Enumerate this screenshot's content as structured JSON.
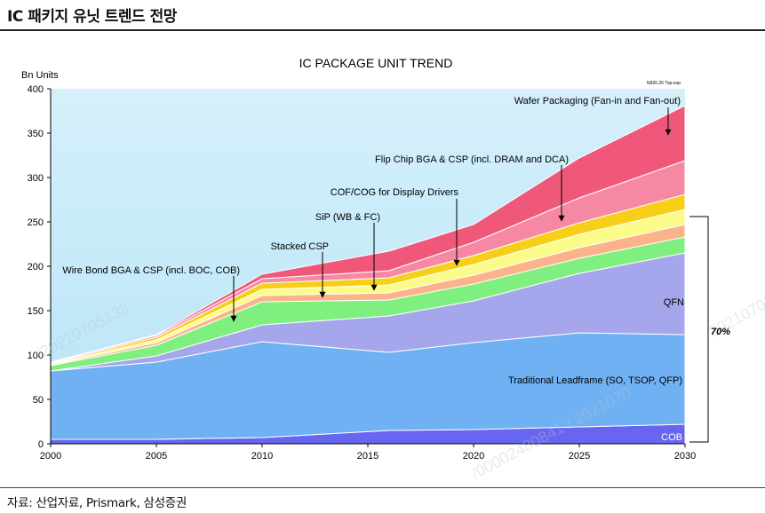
{
  "header": {
    "title": "IC 패키지 유닛 트렌드 전망"
  },
  "footer": {
    "source": "자료: 산업자료, Prismark, 삼성증권"
  },
  "watermarks": [
    "/20210705133",
    "20210705",
    "/00002480841 / 2021070"
  ],
  "chart_data": {
    "type": "area",
    "title": "IC PACKAGE UNIT TREND",
    "ylabel": "Bn Units",
    "note": "N920.26 Top-exp",
    "x": [
      2000,
      2005,
      2010,
      2016,
      2020,
      2025,
      2030
    ],
    "xticks": [
      2000,
      2005,
      2010,
      2015,
      2020,
      2025,
      2030
    ],
    "ylim": [
      0,
      400
    ],
    "yticks": [
      0,
      50,
      100,
      150,
      200,
      250,
      300,
      350,
      400
    ],
    "stacked": true,
    "series": [
      {
        "name": "COB",
        "color": "#6666f0",
        "values": [
          5,
          5,
          7,
          15,
          16,
          19,
          22
        ]
      },
      {
        "name": "Traditional Leadframe (SO, TSOP, QFP)",
        "color": "#6fb1f3",
        "values": [
          77,
          87,
          108,
          88,
          98,
          106,
          101
        ]
      },
      {
        "name": "QFN",
        "color": "#a6a6ec",
        "values": [
          0,
          7,
          19,
          41,
          47,
          67,
          92
        ]
      },
      {
        "name": "Wire Bond BGA & CSP (incl. BOC, COB)",
        "color": "#7fef7f",
        "values": [
          6,
          12,
          26,
          18,
          19,
          17,
          18
        ]
      },
      {
        "name": "Stacked CSP",
        "color": "#fbb38a",
        "values": [
          1,
          3,
          7,
          8,
          10,
          12,
          14
        ]
      },
      {
        "name": "SiP (WB & FC)",
        "color": "#fbfb8a",
        "values": [
          1,
          3,
          7,
          9,
          12,
          15,
          17
        ]
      },
      {
        "name": "COF/COG for Display Drivers",
        "color": "#f7cf19",
        "values": [
          1,
          3,
          7,
          8,
          10,
          13,
          17
        ]
      },
      {
        "name": "Flip Chip BGA & CSP (incl. DRAM and DCA)",
        "color": "#f788a4",
        "values": [
          1,
          2,
          5,
          8,
          15,
          28,
          38
        ]
      },
      {
        "name": "Wafer Packaging (Fan-in and Fan-out)",
        "color": "#f0587a",
        "values": [
          0,
          1,
          5,
          22,
          20,
          45,
          62
        ]
      }
    ],
    "annotations": [
      "Wafer Packaging (Fan-in and Fan-out)",
      "Flip Chip BGA & CSP (incl. DRAM and DCA)",
      "COF/COG for Display Drivers",
      "SiP (WB & FC)",
      "Stacked CSP",
      "Wire Bond BGA & CSP (incl. BOC, COB)",
      "QFN",
      "Traditional Leadframe (SO, TSOP, QFP)",
      "COB"
    ],
    "bracket_label": "70%"
  }
}
